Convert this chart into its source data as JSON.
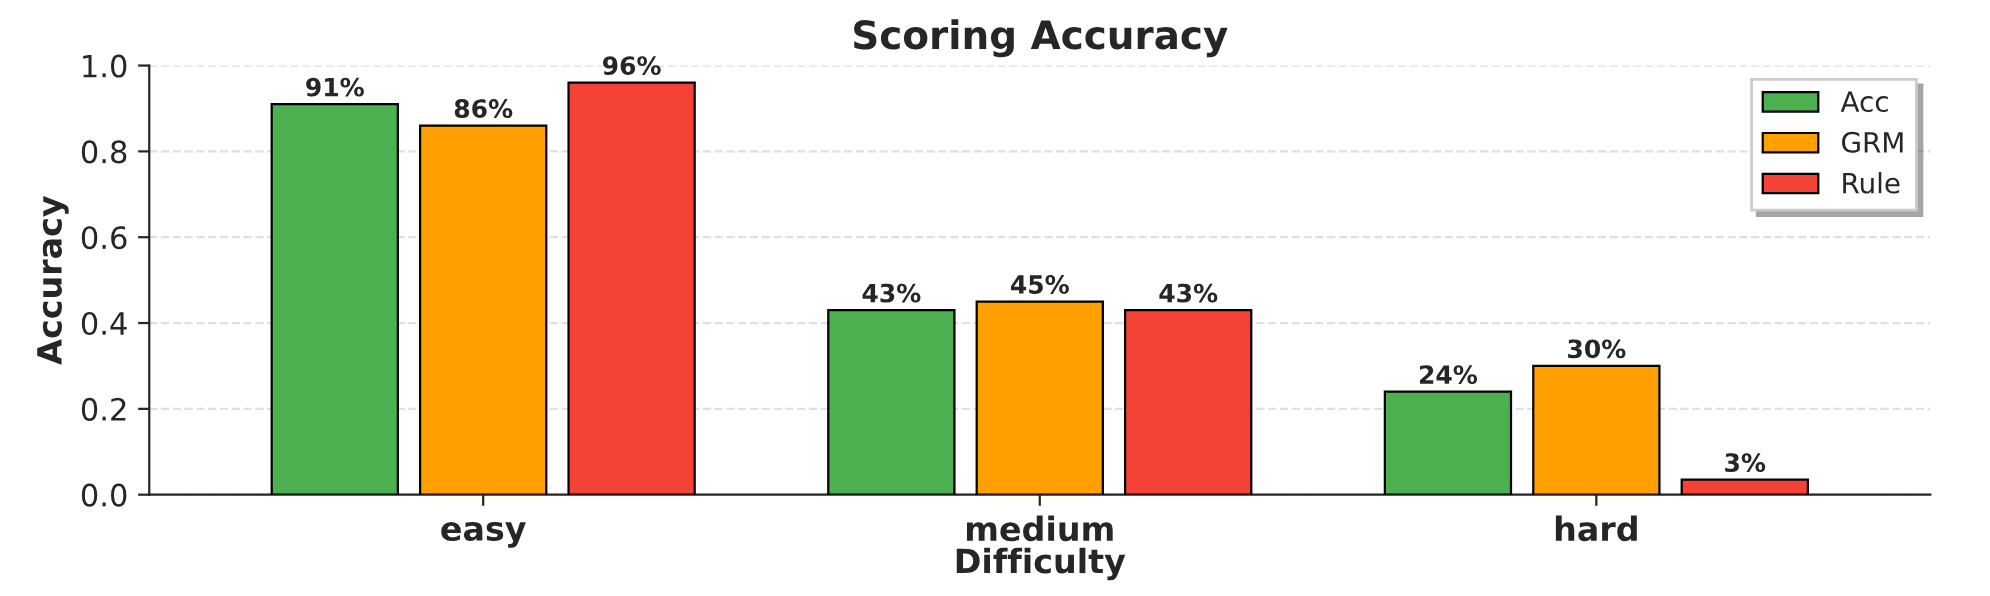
{
  "chart_data": {
    "type": "bar",
    "title": "Scoring Accuracy",
    "xlabel": "Difficulty",
    "ylabel": "Accuracy",
    "categories": [
      "easy",
      "medium",
      "hard"
    ],
    "series": [
      {
        "name": "Acc",
        "color": "#4caf50",
        "values": [
          0.91,
          0.43,
          0.24
        ],
        "value_labels": [
          "91%",
          "43%",
          "24%"
        ]
      },
      {
        "name": "GRM",
        "color": "#ff9f00",
        "values": [
          0.86,
          0.45,
          0.3
        ],
        "value_labels": [
          "86%",
          "45%",
          "30%"
        ]
      },
      {
        "name": "Rule",
        "color": "#f44336",
        "values": [
          0.96,
          0.43,
          0.035
        ],
        "value_labels": [
          "96%",
          "43%",
          "3%"
        ]
      }
    ],
    "ylim": [
      0,
      1.0
    ],
    "yticks": [
      {
        "value": 0,
        "label": "0.0"
      },
      {
        "value": 0.2,
        "label": "0.2"
      },
      {
        "value": 0.4,
        "label": "0.4"
      },
      {
        "value": 0.6,
        "label": "0.6"
      },
      {
        "value": 0.8,
        "label": "0.8"
      },
      {
        "value": 1.0,
        "label": "1.0"
      }
    ],
    "grid": "y",
    "legend": "top right"
  }
}
